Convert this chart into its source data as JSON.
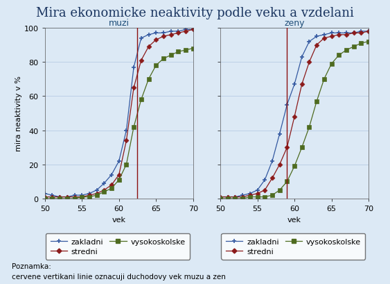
{
  "title": "Mira ekonomicke neaktivity podle veku a vzdelani",
  "title_fontsize": 13,
  "background_color": "#dce9f5",
  "plot_bg_color": "#dce9f5",
  "xlabel": "vek",
  "ylabel": "mira neaktivity v %",
  "xlim": [
    50,
    70
  ],
  "ylim": [
    0,
    100
  ],
  "xticks": [
    50,
    55,
    60,
    65,
    70
  ],
  "yticks": [
    0,
    20,
    40,
    60,
    80,
    100
  ],
  "vline_muzi": 62.5,
  "vline_zeny": 59.0,
  "vline_color": "#8b1010",
  "subtitle_muzi": "muzi",
  "subtitle_zeny": "zeny",
  "subtitle_color": "#1f4e79",
  "note_line1": "Poznamka:",
  "note_line2": "cervene vertikani linie oznacuji duchodovy vek muzu a zen",
  "colors": {
    "zakladni": "#3358a0",
    "stredni": "#8b1a1a",
    "vysokoskolske": "#4e6b20"
  },
  "muzi": {
    "ages": [
      50,
      51,
      52,
      53,
      54,
      55,
      56,
      57,
      58,
      59,
      60,
      61,
      62,
      63,
      64,
      65,
      66,
      67,
      68,
      69,
      70
    ],
    "zakladni": [
      3,
      2,
      1,
      1,
      2,
      2,
      3,
      5,
      9,
      14,
      22,
      40,
      77,
      94,
      96,
      97,
      97,
      98,
      98,
      99,
      99
    ],
    "stredni": [
      1,
      1,
      1,
      1,
      1,
      1,
      2,
      3,
      5,
      8,
      14,
      34,
      65,
      81,
      89,
      93,
      95,
      96,
      97,
      98,
      99
    ],
    "vysokoskolske": [
      0,
      0,
      0,
      0,
      0,
      1,
      1,
      2,
      4,
      6,
      11,
      20,
      42,
      58,
      70,
      78,
      82,
      84,
      86,
      87,
      88
    ]
  },
  "zeny": {
    "ages": [
      50,
      51,
      52,
      53,
      54,
      55,
      56,
      57,
      58,
      59,
      60,
      61,
      62,
      63,
      64,
      65,
      66,
      67,
      68,
      69,
      70
    ],
    "zakladni": [
      1,
      1,
      1,
      2,
      3,
      5,
      11,
      22,
      38,
      55,
      67,
      83,
      92,
      95,
      96,
      97,
      97,
      97,
      97,
      98,
      98
    ],
    "stredni": [
      1,
      1,
      1,
      1,
      2,
      3,
      5,
      12,
      20,
      30,
      48,
      67,
      80,
      90,
      94,
      95,
      96,
      96,
      97,
      97,
      98
    ],
    "vysokoskolske": [
      0,
      0,
      0,
      0,
      1,
      1,
      1,
      2,
      5,
      10,
      19,
      30,
      42,
      57,
      70,
      79,
      84,
      87,
      89,
      91,
      92
    ]
  },
  "grid_color": "#b8cce4",
  "tick_fontsize": 8,
  "label_fontsize": 8,
  "legend_fontsize": 8,
  "subtitle_fontsize": 9
}
